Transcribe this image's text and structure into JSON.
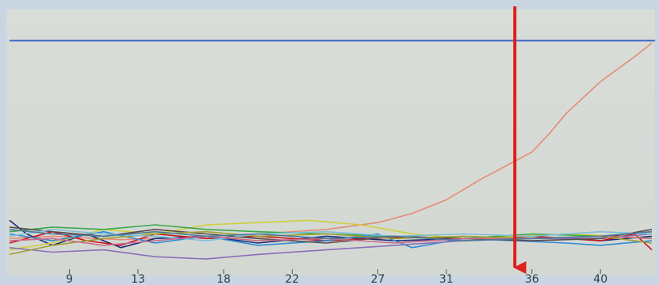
{
  "chart_data": {
    "type": "line",
    "title": "",
    "xlabel": "",
    "ylabel": "",
    "xlim": [
      5.5,
      43
    ],
    "ylim": [
      -1,
      10
    ],
    "grid": false,
    "x_ticks": [
      9,
      13,
      18,
      22,
      27,
      31,
      36,
      40
    ],
    "threshold": {
      "value": 8.7,
      "color": "#3a66c9"
    },
    "marker": {
      "x": 35,
      "color": "#e0201a"
    },
    "series": [
      {
        "color": "#e68a78",
        "x": [
          5.5,
          8,
          12,
          16,
          20,
          24,
          27,
          29,
          31,
          33,
          35,
          36,
          37,
          38,
          40,
          42,
          43
        ],
        "y": [
          0,
          0.1,
          -0.05,
          0.05,
          0.2,
          0.4,
          0.7,
          1.1,
          1.7,
          2.6,
          3.4,
          3.8,
          4.6,
          5.5,
          6.9,
          8.0,
          8.6
        ]
      },
      {
        "color": "#1c2d78",
        "x": [
          5.5,
          6.5,
          8,
          10,
          12,
          14,
          17,
          20,
          24,
          28,
          32,
          36,
          40,
          43
        ],
        "y": [
          0.8,
          0.2,
          -0.3,
          0.2,
          -0.4,
          0,
          0.1,
          -0.2,
          0.1,
          -0.1,
          0,
          0.1,
          -0.1,
          0.1
        ]
      },
      {
        "color": "#c8141e",
        "x": [
          5.5,
          8,
          10,
          12,
          14,
          17,
          20,
          24,
          28,
          32,
          36,
          40,
          42,
          43
        ],
        "y": [
          -0.2,
          0.3,
          -0.1,
          -0.3,
          0.2,
          0,
          0.1,
          -0.1,
          0.05,
          0,
          0.1,
          -0.1,
          0.2,
          -0.5
        ]
      },
      {
        "color": "#d0cf3a",
        "x": [
          5.5,
          8,
          11,
          14,
          17,
          20,
          23,
          26,
          29,
          32,
          35,
          38,
          41,
          43
        ],
        "y": [
          -0.5,
          -0.2,
          0.4,
          0.2,
          0.6,
          0.7,
          0.8,
          0.6,
          0.2,
          0,
          0.1,
          0.2,
          0.1,
          0
        ]
      },
      {
        "color": "#3aa74a",
        "x": [
          5.5,
          8,
          11,
          14,
          17,
          20,
          24,
          28,
          32,
          36,
          40,
          43
        ],
        "y": [
          0.3,
          0.5,
          0.4,
          0.6,
          0.4,
          0.3,
          0.2,
          0.1,
          0,
          0.2,
          0.1,
          0.3
        ]
      },
      {
        "color": "#2e8ad6",
        "x": [
          5.5,
          8,
          11,
          14,
          17,
          20,
          24,
          27,
          29,
          32,
          35,
          38,
          40,
          43
        ],
        "y": [
          0.2,
          -0.1,
          0.3,
          -0.2,
          0.1,
          -0.3,
          -0.1,
          0.2,
          -0.4,
          0,
          -0.1,
          -0.2,
          -0.3,
          -0.1
        ]
      },
      {
        "color": "#8a6fb8",
        "x": [
          5.5,
          8,
          11,
          14,
          17,
          20,
          24,
          28,
          32,
          36,
          40,
          43
        ],
        "y": [
          -0.4,
          -0.6,
          -0.5,
          -0.8,
          -0.9,
          -0.7,
          -0.5,
          -0.3,
          -0.1,
          0,
          0,
          0.2
        ]
      },
      {
        "color": "#5a4a4a",
        "x": [
          5.5,
          8,
          11,
          14,
          17,
          20,
          24,
          28,
          32,
          36,
          40,
          43
        ],
        "y": [
          0.5,
          0.3,
          0.1,
          0.4,
          0.2,
          0,
          -0.2,
          0.1,
          0,
          -0.1,
          0,
          0.4
        ]
      },
      {
        "color": "#a0a030",
        "x": [
          5.5,
          8,
          11,
          14,
          17,
          20,
          24,
          28,
          32,
          36,
          40,
          43
        ],
        "y": [
          -0.7,
          -0.3,
          0,
          0.2,
          0.3,
          0.1,
          0.2,
          0,
          0.1,
          0,
          0.1,
          -0.2
        ]
      },
      {
        "color": "#7fbfd8",
        "x": [
          5.5,
          8,
          11,
          14,
          17,
          20,
          24,
          28,
          32,
          36,
          40,
          43
        ],
        "y": [
          0.1,
          0.4,
          0.2,
          0.1,
          -0.1,
          0.2,
          0.3,
          0.1,
          0.2,
          0.1,
          0.3,
          0.2
        ]
      },
      {
        "color": "#c86c8a",
        "x": [
          5.5,
          8,
          11,
          14,
          17,
          20,
          24,
          28,
          32,
          36,
          40,
          43
        ],
        "y": [
          -0.1,
          0,
          -0.3,
          -0.1,
          0.1,
          -0.1,
          0,
          -0.2,
          0,
          0,
          0.1,
          0
        ]
      },
      {
        "color": "#4a7a9a",
        "x": [
          5.5,
          8,
          11,
          14,
          17,
          20,
          24,
          28,
          32,
          36,
          40,
          43
        ],
        "y": [
          0.4,
          0.2,
          0.1,
          0.3,
          0.1,
          0.2,
          0,
          0.1,
          -0.1,
          0,
          0.1,
          0.3
        ]
      }
    ]
  }
}
